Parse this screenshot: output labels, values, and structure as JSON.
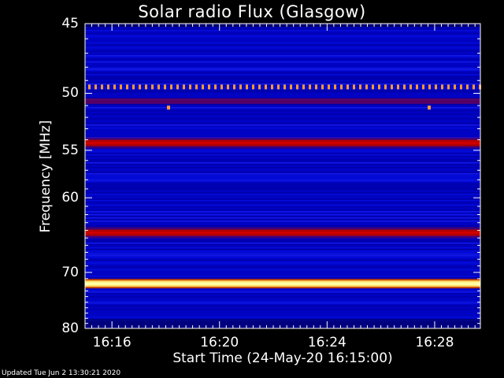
{
  "title": "Solar radio Flux (Glasgow)",
  "footer": "Updated Tue Jun  2 13:30:21 2020",
  "chart_data": {
    "type": "heatmap",
    "title": "Solar radio Flux (Glasgow)",
    "xlabel": "Start Time (24-May-20 16:15:00)",
    "ylabel": "Frequency [MHz]",
    "x_ticks": [
      {
        "label": "16:16",
        "minutes": 1
      },
      {
        "label": "16:20",
        "minutes": 5
      },
      {
        "label": "16:24",
        "minutes": 9
      },
      {
        "label": "16:28",
        "minutes": 13
      }
    ],
    "xlim_minutes": [
      0,
      14.7
    ],
    "y_ticks": [
      45,
      50,
      55,
      60,
      70,
      80
    ],
    "ylim": [
      45,
      80
    ],
    "y_scale": "reciprocal",
    "bands": [
      {
        "freq": 49.5,
        "intensity": "dotted-orange"
      },
      {
        "freq": 50.6,
        "intensity": "dark-red"
      },
      {
        "freq": 54.3,
        "intensity": "red"
      },
      {
        "freq": 64.3,
        "intensity": "red"
      },
      {
        "freq": 71.8,
        "intensity": "white-yellow"
      }
    ],
    "colors": {
      "background": "#0000c8",
      "low": "#000080",
      "band": "#b40000",
      "peak": "#ffffa0"
    }
  }
}
